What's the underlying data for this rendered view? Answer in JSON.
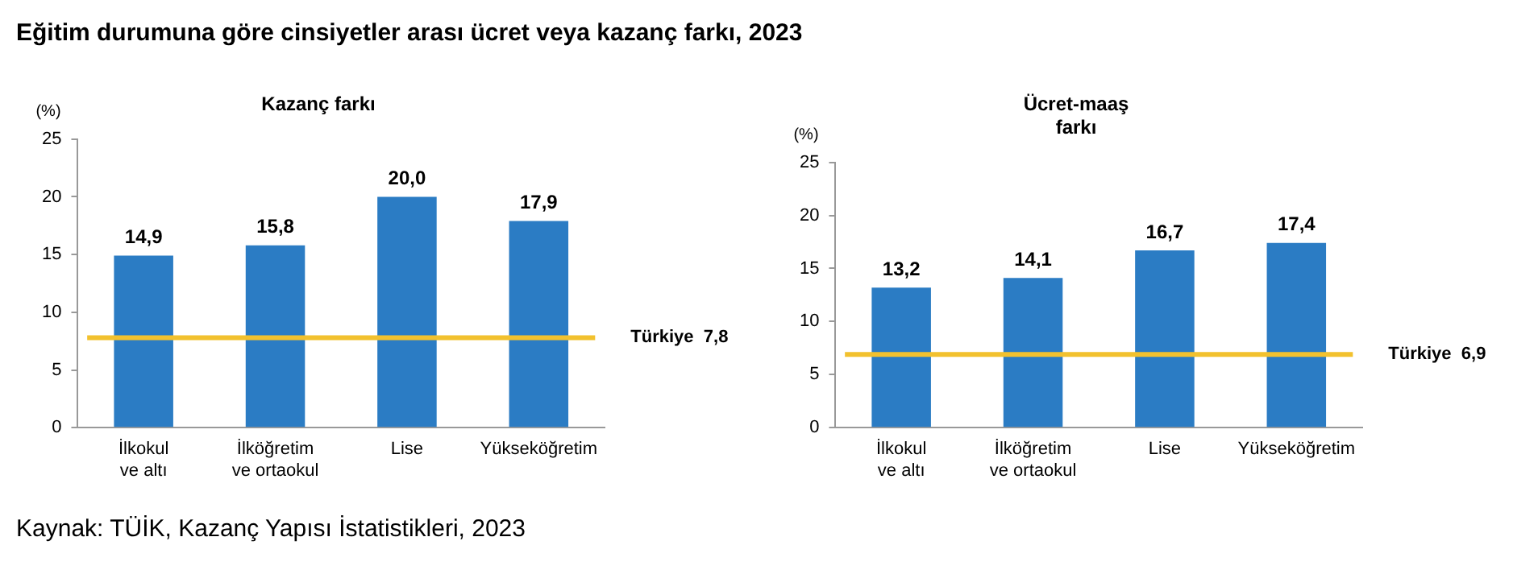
{
  "chart_data": [
    {
      "type": "bar",
      "title": "Kazanç farkı",
      "ylabel": "(%)",
      "annotations": [
        "Eğitim durumuna göre cinsiyetler arası ücret veya kazanç farkı, 2023"
      ],
      "categories": [
        "İlkokul\nve altı",
        "İlköğretim\nve ortaokul",
        "Lise",
        "Yükseköğretim"
      ],
      "values": [
        14.9,
        15.8,
        20.0,
        17.9
      ],
      "value_labels": [
        "14,9",
        "15,8",
        "20,0",
        "17,9"
      ],
      "color": "#2b7cc4",
      "ylim": [
        0,
        25
      ],
      "yticks": [
        0,
        5,
        10,
        15,
        20,
        25
      ],
      "grid": false,
      "legend": false,
      "ref_lines": [
        {
          "axis": "y",
          "value": 7.8,
          "label": "Türkiye  7,8",
          "color": "#f2c12e"
        }
      ]
    },
    {
      "type": "bar",
      "title": "Ücret-maaş\nfarkı",
      "ylabel": "(%)",
      "annotations": [
        "Kaynak: TÜİK, Kazanç Yapısı İstatistikleri, 2023"
      ],
      "categories": [
        "İlkokul\nve altı",
        "İlköğretim\nve ortaokul",
        "Lise",
        "Yükseköğretim"
      ],
      "values": [
        13.2,
        14.1,
        16.7,
        17.4
      ],
      "value_labels": [
        "13,2",
        "14,1",
        "16,7",
        "17,4"
      ],
      "color": "#2b7cc4",
      "ylim": [
        0,
        25
      ],
      "yticks": [
        0,
        5,
        10,
        15,
        20,
        25
      ],
      "grid": false,
      "legend": false,
      "ref_lines": [
        {
          "axis": "y",
          "value": 6.9,
          "label": "Türkiye  6,9",
          "color": "#f2c12e"
        }
      ]
    }
  ]
}
